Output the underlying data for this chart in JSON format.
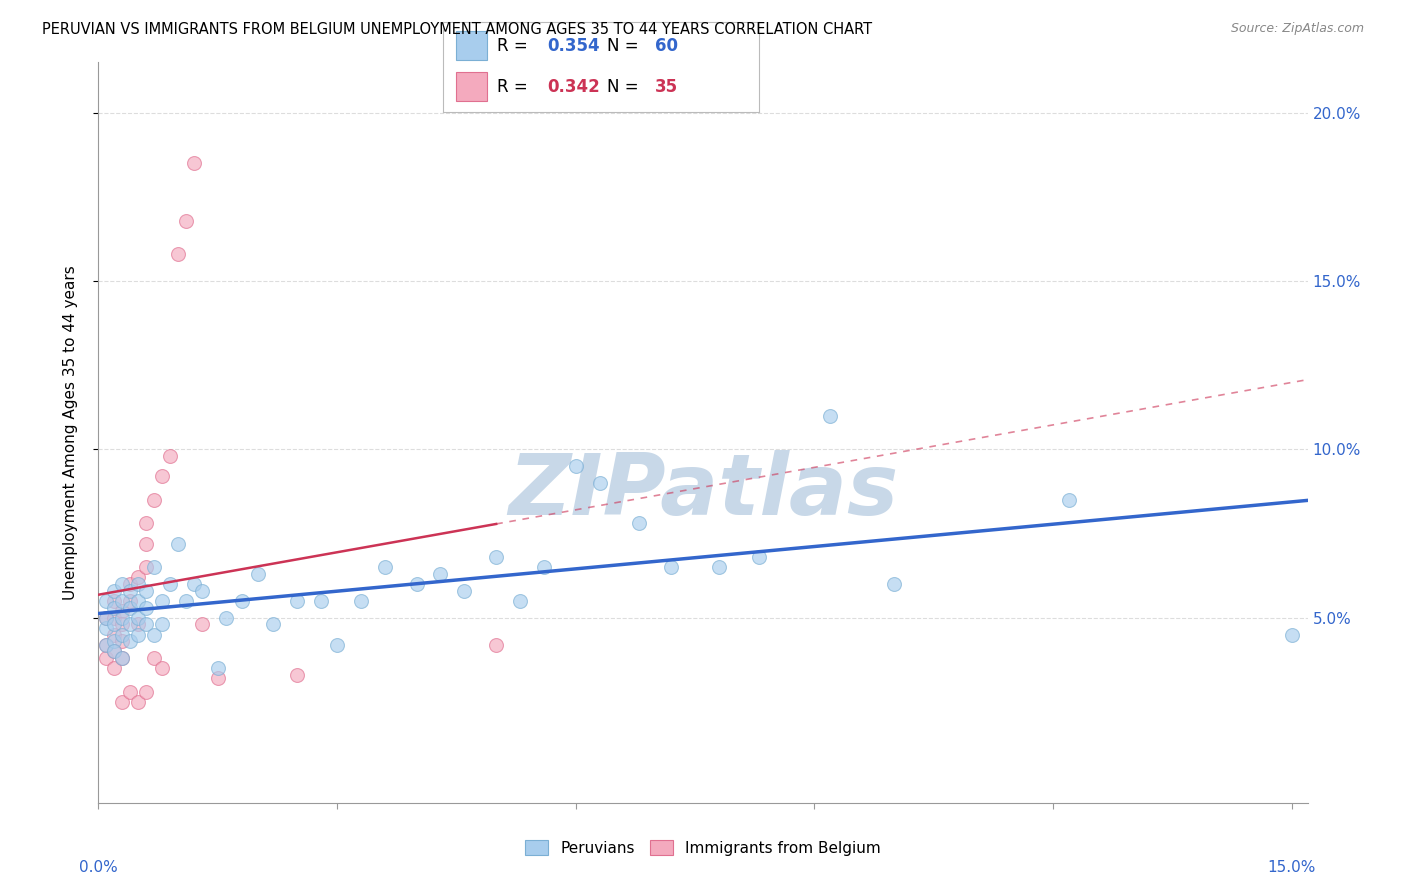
{
  "title": "PERUVIAN VS IMMIGRANTS FROM BELGIUM UNEMPLOYMENT AMONG AGES 35 TO 44 YEARS CORRELATION CHART",
  "source": "Source: ZipAtlas.com",
  "ylabel": "Unemployment Among Ages 35 to 44 years",
  "xlim": [
    0.0,
    0.152
  ],
  "ylim": [
    -0.005,
    0.215
  ],
  "peruvian_color": "#A8CDED",
  "belgium_color": "#F4AABE",
  "peruvian_edge": "#7BAFD4",
  "belgium_edge": "#E07090",
  "trend_blue": "#3366CC",
  "trend_pink": "#CC3355",
  "grid_color": "#DDDDDD",
  "watermark_text": "ZIPatlas",
  "watermark_color": "#C8D8E8",
  "legend_R_blue": "0.354",
  "legend_N_blue": "60",
  "legend_R_pink": "0.342",
  "legend_N_pink": "35",
  "legend_value_color_blue": "#3366CC",
  "legend_value_color_pink": "#CC3355",
  "peruvian_x": [
    0.001,
    0.001,
    0.001,
    0.001,
    0.002,
    0.002,
    0.002,
    0.002,
    0.002,
    0.003,
    0.003,
    0.003,
    0.003,
    0.003,
    0.004,
    0.004,
    0.004,
    0.004,
    0.005,
    0.005,
    0.005,
    0.005,
    0.006,
    0.006,
    0.006,
    0.007,
    0.007,
    0.008,
    0.008,
    0.009,
    0.01,
    0.011,
    0.012,
    0.013,
    0.015,
    0.016,
    0.018,
    0.02,
    0.022,
    0.025,
    0.028,
    0.03,
    0.033,
    0.036,
    0.04,
    0.043,
    0.046,
    0.05,
    0.053,
    0.056,
    0.06,
    0.063,
    0.068,
    0.072,
    0.078,
    0.083,
    0.092,
    0.1,
    0.122,
    0.15
  ],
  "peruvian_y": [
    0.047,
    0.05,
    0.055,
    0.042,
    0.058,
    0.053,
    0.048,
    0.043,
    0.04,
    0.06,
    0.055,
    0.05,
    0.045,
    0.038,
    0.058,
    0.053,
    0.048,
    0.043,
    0.06,
    0.055,
    0.05,
    0.045,
    0.058,
    0.053,
    0.048,
    0.065,
    0.045,
    0.055,
    0.048,
    0.06,
    0.072,
    0.055,
    0.06,
    0.058,
    0.035,
    0.05,
    0.055,
    0.063,
    0.048,
    0.055,
    0.055,
    0.042,
    0.055,
    0.065,
    0.06,
    0.063,
    0.058,
    0.068,
    0.055,
    0.065,
    0.095,
    0.09,
    0.078,
    0.065,
    0.065,
    0.068,
    0.11,
    0.06,
    0.085,
    0.045
  ],
  "belgium_x": [
    0.001,
    0.001,
    0.001,
    0.002,
    0.002,
    0.002,
    0.002,
    0.002,
    0.003,
    0.003,
    0.003,
    0.003,
    0.003,
    0.004,
    0.004,
    0.004,
    0.005,
    0.005,
    0.005,
    0.006,
    0.006,
    0.006,
    0.006,
    0.007,
    0.007,
    0.008,
    0.008,
    0.009,
    0.01,
    0.011,
    0.012,
    0.013,
    0.015,
    0.025,
    0.05
  ],
  "belgium_y": [
    0.05,
    0.042,
    0.038,
    0.055,
    0.05,
    0.045,
    0.04,
    0.035,
    0.052,
    0.048,
    0.043,
    0.038,
    0.025,
    0.06,
    0.055,
    0.028,
    0.062,
    0.048,
    0.025,
    0.078,
    0.072,
    0.065,
    0.028,
    0.085,
    0.038,
    0.092,
    0.035,
    0.098,
    0.158,
    0.168,
    0.185,
    0.048,
    0.032,
    0.033,
    0.042
  ],
  "marker_size": 100,
  "alpha_scatter": 0.65
}
